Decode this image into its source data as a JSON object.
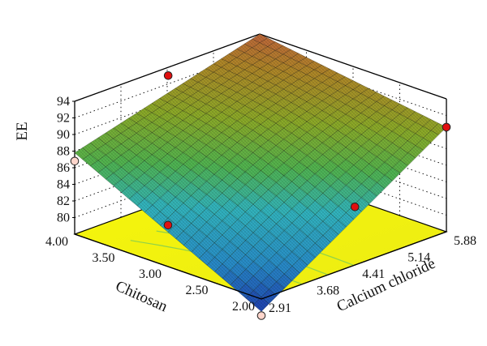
{
  "chart_data": {
    "type": "surface3d",
    "zlabel": "EE",
    "xlabel": "Chitosan",
    "ylabel": "Calcium chloride",
    "x_ticks": [
      "4.00",
      "3.50",
      "3.00",
      "2.50",
      "2.00"
    ],
    "y_ticks": [
      "2.91",
      "3.68",
      "4.41",
      "5.14",
      "5.88"
    ],
    "z_ticks": [
      "80",
      "82",
      "84",
      "86",
      "88",
      "90",
      "92",
      "94"
    ],
    "xlim": [
      2.0,
      4.0
    ],
    "ylim": [
      2.91,
      5.88
    ],
    "zlim": [
      78,
      94
    ],
    "surface_corners": [
      {
        "chitosan": 2.0,
        "calcium_chloride": 2.91,
        "ee": 76.5
      },
      {
        "chitosan": 4.0,
        "calcium_chloride": 2.91,
        "ee": 87.8
      },
      {
        "chitosan": 2.0,
        "calcium_chloride": 5.88,
        "ee": 90.6
      },
      {
        "chitosan": 4.0,
        "calcium_chloride": 5.88,
        "ee": 94.0
      }
    ],
    "design_points": [
      {
        "chitosan": 2.0,
        "calcium_chloride": 2.91,
        "ee": 76.0,
        "position": "below"
      },
      {
        "chitosan": 4.0,
        "calcium_chloride": 2.91,
        "ee": 86.8,
        "position": "below"
      },
      {
        "chitosan": 2.0,
        "calcium_chloride": 5.88,
        "ee": 90.6,
        "position": "above"
      },
      {
        "chitosan": 4.0,
        "calcium_chloride": 5.88,
        "ee": 93.0,
        "position": "below"
      },
      {
        "chitosan": 3.0,
        "calcium_chloride": 2.91,
        "ee": 83.0,
        "position": "above"
      },
      {
        "chitosan": 2.0,
        "calcium_chloride": 4.41,
        "ee": 85.0,
        "position": "above"
      },
      {
        "chitosan": 4.0,
        "calcium_chloride": 4.41,
        "ee": 93.0,
        "position": "above"
      }
    ],
    "colors": {
      "floor": "#f2f20c",
      "floor_contour": "#8fd24a",
      "surface_low": "#1c3cb4",
      "surface_mid": "#2bb7c4",
      "surface_upper": "#6cb93a",
      "surface_high": "#b8a030",
      "surface_top": "#d05a50",
      "point_above": "#e01010",
      "point_below": "#ffd6cc"
    },
    "grid": true
  }
}
